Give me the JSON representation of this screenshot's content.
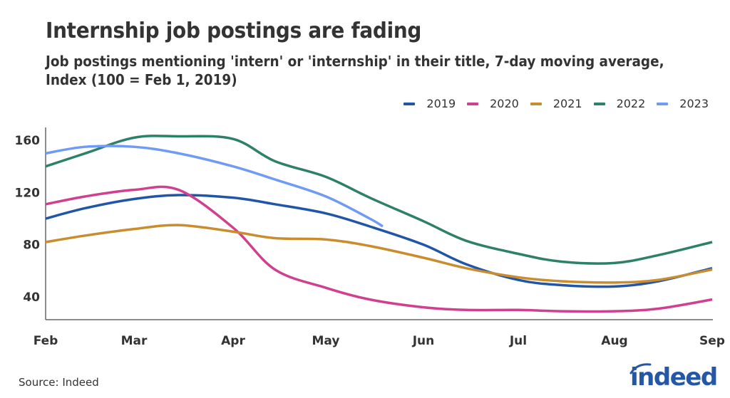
{
  "header": {
    "title": "Internship job postings are fading",
    "subtitle": "Job postings mentioning 'intern' or 'internship' in their title, 7-day moving average, Index (100 = Feb 1, 2019)"
  },
  "legend": {
    "items": [
      {
        "label": "2019",
        "color": "#2155a8"
      },
      {
        "label": "2020",
        "color": "#d0408f"
      },
      {
        "label": "2021",
        "color": "#c98d2e"
      },
      {
        "label": "2022",
        "color": "#2e8068"
      },
      {
        "label": "2023",
        "color": "#6f9af5"
      }
    ]
  },
  "footer": {
    "source": "Source: Indeed",
    "logo_text": "indeed"
  },
  "axes": {
    "y_ticks": [
      "160",
      "120",
      "80",
      "40"
    ],
    "x_ticks": [
      "Feb",
      "Mar",
      "Apr",
      "May",
      "Jun",
      "Jul",
      "Aug",
      "Sep"
    ]
  },
  "chart_data": {
    "type": "line",
    "title": "Internship job postings are fading",
    "subtitle": "Job postings mentioning 'intern' or 'internship' in their title, 7-day moving average, Index (100 = Feb 1, 2019)",
    "xlabel": "",
    "ylabel": "",
    "x": [
      "Feb 1",
      "Feb 15",
      "Mar 1",
      "Mar 15",
      "Apr 1",
      "Apr 15",
      "May 1",
      "May 15",
      "Jun 1",
      "Jun 15",
      "Jul 1",
      "Jul 15",
      "Aug 1",
      "Aug 15",
      "Sep 1"
    ],
    "x_tick_labels": [
      "Feb",
      "Mar",
      "Apr",
      "May",
      "Jun",
      "Jul",
      "Aug",
      "Sep"
    ],
    "y_tick_labels": [
      40,
      80,
      120,
      160
    ],
    "ylim": [
      22,
      168
    ],
    "grid": false,
    "legend_position": "top-right",
    "source": "Indeed",
    "series": [
      {
        "name": "2019",
        "color": "#2155a8",
        "values": [
          100,
          108,
          115,
          118,
          116,
          111,
          104,
          94,
          80,
          65,
          53,
          49,
          48,
          52,
          62
        ]
      },
      {
        "name": "2020",
        "color": "#d0408f",
        "values": [
          111,
          117,
          122,
          122,
          93,
          61,
          47,
          38,
          32,
          30,
          30,
          29,
          29,
          31,
          38
        ]
      },
      {
        "name": "2021",
        "color": "#c98d2e",
        "values": [
          82,
          87,
          92,
          95,
          90,
          85,
          84,
          79,
          70,
          62,
          55,
          52,
          51,
          53,
          61
        ]
      },
      {
        "name": "2022",
        "color": "#2e8068",
        "values": [
          140,
          150,
          162,
          163,
          161,
          144,
          132,
          116,
          98,
          83,
          73,
          67,
          66,
          72,
          82
        ]
      },
      {
        "name": "2023",
        "color": "#6f9af5",
        "values": [
          150,
          155,
          155,
          150,
          140,
          130,
          117,
          100,
          null,
          null,
          null,
          null,
          null,
          null,
          null
        ]
      }
    ],
    "annotations": []
  }
}
